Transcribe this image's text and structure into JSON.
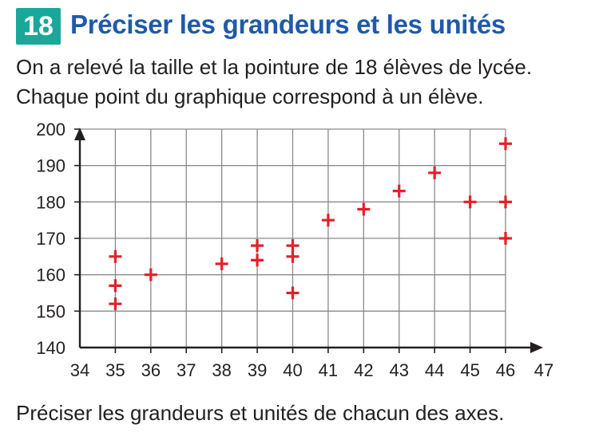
{
  "exercise": {
    "number": "18",
    "title": "Préciser les grandeurs et les unités",
    "intro_line1": "On a relevé la taille et la pointure de 18 élèves de lycée.",
    "intro_line2": "Chaque point du graphique correspond à un élève.",
    "question": "Préciser les grandeurs et unités de chacun des axes."
  },
  "colors": {
    "badge": "#17a89a",
    "title": "#1f5aa8",
    "marker": "#e3202a",
    "grid": "#8a8a8a",
    "axis": "#231f20"
  },
  "chart_data": {
    "type": "scatter",
    "marker": "plus",
    "grid": true,
    "xlim": [
      34,
      47
    ],
    "ylim": [
      140,
      200
    ],
    "x_ticks": [
      34,
      35,
      36,
      37,
      38,
      39,
      40,
      41,
      42,
      43,
      44,
      45,
      46,
      47
    ],
    "y_ticks": [
      140,
      150,
      160,
      170,
      180,
      190,
      200
    ],
    "xlabel": "",
    "ylabel": "",
    "points": [
      {
        "x": 35,
        "y": 165
      },
      {
        "x": 35,
        "y": 157
      },
      {
        "x": 35,
        "y": 152
      },
      {
        "x": 36,
        "y": 160
      },
      {
        "x": 38,
        "y": 163
      },
      {
        "x": 39,
        "y": 168
      },
      {
        "x": 39,
        "y": 164
      },
      {
        "x": 40,
        "y": 168
      },
      {
        "x": 40,
        "y": 165
      },
      {
        "x": 40,
        "y": 155
      },
      {
        "x": 41,
        "y": 175
      },
      {
        "x": 42,
        "y": 178
      },
      {
        "x": 43,
        "y": 183
      },
      {
        "x": 44,
        "y": 188
      },
      {
        "x": 45,
        "y": 180
      },
      {
        "x": 46,
        "y": 196
      },
      {
        "x": 46,
        "y": 180
      },
      {
        "x": 46,
        "y": 170
      }
    ]
  }
}
